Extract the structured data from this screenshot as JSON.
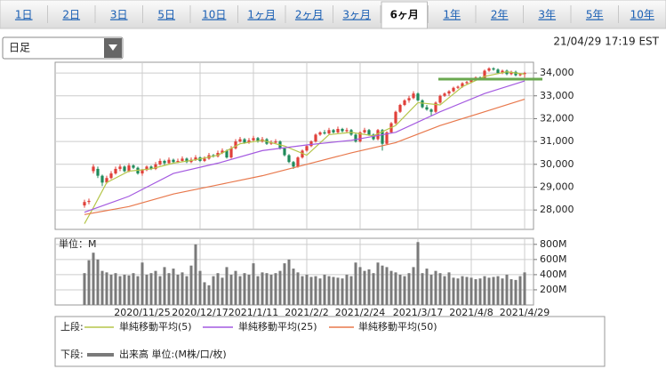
{
  "tabs": [
    "1日",
    "2日",
    "3日",
    "5日",
    "10日",
    "1ヶ月",
    "2ヶ月",
    "3ヶ月",
    "6ヶ月",
    "1年",
    "2年",
    "3年",
    "5年",
    "10年"
  ],
  "selected_tab": 8,
  "dropdown": "日足",
  "timestamp": "21/04/29 17:19 EST",
  "chart_data": [
    {
      "type": "candlestick",
      "legend_label": "上段:",
      "up_color": "#e0403a",
      "down_color": "#1f8a5a",
      "grid": true,
      "ylim": [
        27150,
        34470
      ],
      "yticks": [
        {
          "value": 28000,
          "label": "28,000"
        },
        {
          "value": 29000,
          "label": "29,000"
        },
        {
          "value": 30000,
          "label": "30,000"
        },
        {
          "value": 31000,
          "label": "31,000"
        },
        {
          "value": 32000,
          "label": "32,000"
        },
        {
          "value": 33000,
          "label": "33,000"
        },
        {
          "value": 34000,
          "label": "34,000"
        }
      ],
      "ohlc": [
        [
          28200,
          28450,
          28100,
          28350
        ],
        [
          28350,
          28500,
          28250,
          28400
        ],
        [
          29700,
          30000,
          29600,
          29900
        ],
        [
          29800,
          29900,
          29400,
          29500
        ],
        [
          29500,
          29550,
          29050,
          29200
        ],
        [
          29200,
          29500,
          29150,
          29400
        ],
        [
          29400,
          29700,
          29350,
          29600
        ],
        [
          29600,
          29900,
          29550,
          29800
        ],
        [
          29800,
          30000,
          29700,
          29900
        ],
        [
          29900,
          29950,
          29650,
          29700
        ],
        [
          29700,
          30050,
          29650,
          29950
        ],
        [
          29950,
          30000,
          29800,
          29850
        ],
        [
          29850,
          29900,
          29550,
          29600
        ],
        [
          29600,
          29800,
          29500,
          29750
        ],
        [
          29750,
          29950,
          29700,
          29900
        ],
        [
          29900,
          29950,
          29750,
          29800
        ],
        [
          29800,
          30100,
          29750,
          30000
        ],
        [
          30000,
          30250,
          29950,
          30150
        ],
        [
          30150,
          30200,
          29950,
          30050
        ],
        [
          30050,
          30300,
          30000,
          30200
        ],
        [
          30200,
          30250,
          30050,
          30100
        ],
        [
          30100,
          30250,
          30050,
          30150
        ],
        [
          30150,
          30350,
          30100,
          30250
        ],
        [
          30250,
          30300,
          30050,
          30100
        ],
        [
          30100,
          30300,
          30050,
          30200
        ],
        [
          30200,
          30400,
          30150,
          30300
        ],
        [
          30300,
          30350,
          30100,
          30150
        ],
        [
          30150,
          30350,
          30100,
          30250
        ],
        [
          30250,
          30500,
          30200,
          30400
        ],
        [
          30400,
          30450,
          30300,
          30350
        ],
        [
          30350,
          30600,
          30300,
          30500
        ],
        [
          30500,
          30700,
          30450,
          30600
        ],
        [
          30600,
          30650,
          30250,
          30300
        ],
        [
          30300,
          30800,
          30250,
          30700
        ],
        [
          30700,
          31100,
          30650,
          31000
        ],
        [
          31000,
          31200,
          30950,
          31100
        ],
        [
          31100,
          31150,
          30900,
          30950
        ],
        [
          30950,
          31150,
          30900,
          31050
        ],
        [
          31050,
          31250,
          31000,
          31150
        ],
        [
          31150,
          31200,
          30950,
          31000
        ],
        [
          31000,
          31200,
          30950,
          31100
        ],
        [
          31100,
          31150,
          30850,
          30900
        ],
        [
          30900,
          31050,
          30850,
          30950
        ],
        [
          30950,
          31100,
          30900,
          31000
        ],
        [
          31000,
          31050,
          30650,
          30700
        ],
        [
          30700,
          30750,
          30350,
          30400
        ],
        [
          30400,
          30450,
          30050,
          30100
        ],
        [
          30100,
          30150,
          29800,
          29900
        ],
        [
          29900,
          30350,
          29850,
          30300
        ],
        [
          30300,
          30650,
          30250,
          30600
        ],
        [
          30600,
          30850,
          30550,
          30800
        ],
        [
          30800,
          31050,
          30750,
          31000
        ],
        [
          31000,
          31350,
          30950,
          31300
        ],
        [
          31300,
          31450,
          31250,
          31400
        ],
        [
          31400,
          31500,
          31300,
          31350
        ],
        [
          31350,
          31600,
          31300,
          31500
        ],
        [
          31500,
          31550,
          31350,
          31400
        ],
        [
          31400,
          31650,
          31350,
          31550
        ],
        [
          31550,
          31600,
          31400,
          31450
        ],
        [
          31450,
          31600,
          31400,
          31500
        ],
        [
          31500,
          31550,
          31250,
          31300
        ],
        [
          31300,
          31350,
          30950,
          31000
        ],
        [
          31000,
          31450,
          30950,
          31400
        ],
        [
          31400,
          31600,
          31350,
          31500
        ],
        [
          31500,
          31550,
          31250,
          31300
        ],
        [
          31300,
          31350,
          31050,
          31100
        ],
        [
          31100,
          31550,
          31050,
          31500
        ],
        [
          31500,
          31550,
          30600,
          30900
        ],
        [
          30900,
          31450,
          30850,
          31400
        ],
        [
          31400,
          31850,
          31350,
          31800
        ],
        [
          31800,
          32350,
          31750,
          32300
        ],
        [
          32300,
          32650,
          32250,
          32600
        ],
        [
          32600,
          32850,
          32550,
          32800
        ],
        [
          32800,
          33000,
          32700,
          32900
        ],
        [
          32900,
          33200,
          32850,
          33100
        ],
        [
          33100,
          33150,
          32750,
          32800
        ],
        [
          32800,
          32850,
          32450,
          32500
        ],
        [
          32500,
          32600,
          32350,
          32400
        ],
        [
          32400,
          32450,
          32100,
          32300
        ],
        [
          32300,
          32750,
          32250,
          32700
        ],
        [
          32700,
          33050,
          32650,
          33000
        ],
        [
          33000,
          33150,
          32950,
          33100
        ],
        [
          33100,
          33250,
          33000,
          33200
        ],
        [
          33200,
          33400,
          33150,
          33350
        ],
        [
          33350,
          33450,
          33300,
          33400
        ],
        [
          33400,
          33600,
          33350,
          33550
        ],
        [
          33550,
          33650,
          33500,
          33600
        ],
        [
          33600,
          33750,
          33550,
          33700
        ],
        [
          33700,
          33850,
          33650,
          33800
        ],
        [
          33800,
          33850,
          33700,
          33750
        ],
        [
          33750,
          34150,
          33700,
          34100
        ],
        [
          34100,
          34250,
          34050,
          34200
        ],
        [
          34200,
          34250,
          34100,
          34150
        ],
        [
          34150,
          34200,
          33950,
          34000
        ],
        [
          34000,
          34150,
          33950,
          34100
        ],
        [
          34100,
          34150,
          33900,
          33950
        ],
        [
          33950,
          34100,
          33900,
          34050
        ],
        [
          34050,
          34100,
          33850,
          33900
        ],
        [
          33900,
          34000,
          33850,
          33950
        ],
        [
          33950,
          34050,
          33800,
          34000
        ]
      ],
      "series": [
        {
          "name": "単純移動平均(5)",
          "color": "#b5c64a",
          "x": [
            0,
            2,
            5,
            10,
            15,
            20,
            25,
            30,
            35,
            40,
            45,
            50,
            55,
            60,
            65,
            70,
            75,
            80,
            85,
            90,
            95,
            99
          ],
          "values": [
            27400,
            28100,
            29200,
            29700,
            29800,
            30050,
            30200,
            30400,
            30900,
            31050,
            30800,
            30400,
            31300,
            31400,
            31250,
            31700,
            32700,
            32600,
            33400,
            33850,
            34050,
            33950
          ]
        },
        {
          "name": "単純移動平均(25)",
          "color": "#a45ae0",
          "x": [
            0,
            10,
            20,
            30,
            40,
            50,
            60,
            70,
            80,
            90,
            99
          ],
          "values": [
            27900,
            28600,
            29600,
            30050,
            30600,
            30850,
            31050,
            31400,
            32300,
            33100,
            33650
          ]
        },
        {
          "name": "単純移動平均(50)",
          "color": "#e8784c",
          "x": [
            0,
            10,
            20,
            30,
            40,
            50,
            60,
            70,
            80,
            90,
            99
          ],
          "values": [
            27800,
            28150,
            28700,
            29100,
            29500,
            30000,
            30500,
            30950,
            31700,
            32300,
            32850
          ]
        }
      ]
    },
    {
      "type": "bar",
      "legend_label": "下段:",
      "unit_label": "単位：M",
      "grid": true,
      "ylim": [
        0,
        880
      ],
      "yticks": [
        {
          "value": 200,
          "label": "200M"
        },
        {
          "value": 400,
          "label": "400M"
        },
        {
          "value": 600,
          "label": "600M"
        },
        {
          "value": 800,
          "label": "800M"
        }
      ],
      "categories": [
        null,
        null,
        null,
        null,
        null,
        null,
        null,
        null,
        null,
        null,
        null,
        null,
        null,
        "2020/11/25",
        null,
        null,
        null,
        null,
        null,
        null,
        null,
        null,
        null,
        null,
        null,
        null,
        "2020/12/17",
        null,
        null,
        null,
        null,
        null,
        null,
        null,
        null,
        null,
        null,
        null,
        "2021/1/11",
        null,
        null,
        null,
        null,
        null,
        null,
        null,
        null,
        null,
        null,
        null,
        "2021/2/2",
        null,
        null,
        null,
        null,
        null,
        null,
        null,
        null,
        null,
        null,
        null,
        "2021/2/24",
        null,
        null,
        null,
        null,
        null,
        null,
        null,
        null,
        null,
        null,
        null,
        null,
        "2021/3/17",
        null,
        null,
        null,
        null,
        null,
        null,
        null,
        null,
        null,
        null,
        null,
        "2021/4/8",
        null,
        null,
        null,
        null,
        null,
        null,
        null,
        null,
        null,
        null,
        null,
        "2021/4/29"
      ],
      "series": [
        {
          "name": "出来高 単位:(M株/口/枚)",
          "color": "#7a7a7a",
          "values": [
            420,
            590,
            690,
            600,
            450,
            430,
            400,
            420,
            380,
            400,
            390,
            420,
            380,
            560,
            400,
            420,
            450,
            380,
            500,
            420,
            480,
            400,
            430,
            380,
            520,
            800,
            450,
            300,
            260,
            380,
            420,
            360,
            500,
            400,
            450,
            380,
            420,
            400,
            550,
            380,
            430,
            420,
            400,
            420,
            450,
            550,
            600,
            480,
            430,
            380,
            400,
            370,
            380,
            350,
            400,
            380,
            370,
            360,
            350,
            400,
            380,
            560,
            500,
            450,
            470,
            420,
            560,
            520,
            500,
            450,
            430,
            400,
            380,
            420,
            500,
            830,
            420,
            480,
            400,
            450,
            420,
            380,
            430,
            360,
            350,
            380,
            370,
            360,
            340,
            350,
            380,
            360,
            370,
            380,
            350,
            400,
            340,
            330,
            380,
            430
          ]
        }
      ]
    }
  ]
}
